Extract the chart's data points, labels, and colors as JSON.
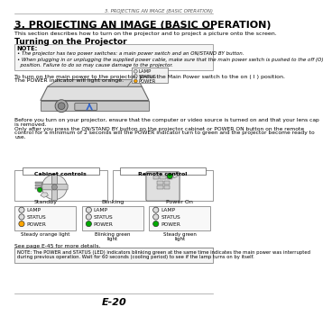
{
  "page_header": "3. PROJECTING AN IMAGE (BASIC OPERATION)",
  "title": "3. PROJECTING AN IMAGE (BASIC OPERATION)",
  "subtitle": "This section describes how to turn on the projector and to project a picture onto the screen.",
  "section_title": "Turning on the Projector",
  "note_label": "NOTE:",
  "note_bullet1": "The projector has two power switches: a main power switch and an ON/STAND BY button.",
  "note_bullet2a": "When plugging in or unplugging the supplied power cable, make sure that the main power switch is pushed to the off (O)",
  "note_bullet2b": "  position. Failure to do so may cause damage to the projector.",
  "body_text1": "To turn on the main power to the projector, press the Main Power switch to the on ( I ) position.",
  "body_text2": "The POWER indicator will light orange.",
  "before_text1": "Before you turn on your projector, ensure that the computer or video source is turned on and that your lens cap",
  "before_text2": "is removed.",
  "after_text1": "Only after you press the ON/STAND BY button on the projector cabinet or POWER ON button on the remote",
  "after_text2": "control for a minimum of 2 seconds will the POWER indicator turn to green and the projector become ready to",
  "after_text3": "use.",
  "caption_controls": "Cabinet controls",
  "caption_remote": "Remote control",
  "standby_label": "Standby",
  "blinking_label": "Blinking",
  "power_on_label": "Power On",
  "lamp_label": "LAMP",
  "status_label": "STATUS",
  "power_label": "POWER",
  "light_label1": "Steady orange light",
  "light_label2": "Blinking green\nlight",
  "light_label3": "Steady green\nlight",
  "see_page": "See page E-45 for more details.",
  "bottom_note": "NOTE: The POWER and STATUS (LED) indicators blinking green at the same time indicates the main power was interrupted during previous operation. Wait for 60 seconds (cooling period) to see if the lamp turns on by itself.",
  "page_number": "E-20",
  "bg_color": "#ffffff",
  "text_color": "#000000",
  "orange_color": "#FFA500",
  "green_color": "#00AA00",
  "gray_light": "#e8e8e8",
  "gray_mid": "#cccccc",
  "gray_dark": "#888888"
}
